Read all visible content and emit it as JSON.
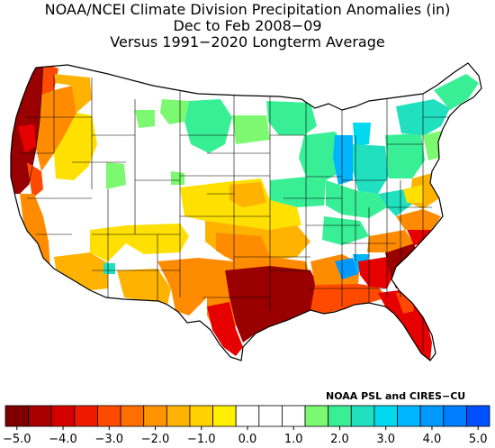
{
  "title": {
    "line1": "NOAA/NCEI Climate Division Precipitation Anomalies (in)",
    "line2": "Dec to Feb 2008−09",
    "line3": "Versus 1991−2020 Longterm Average"
  },
  "credit": "NOAA PSL and CIRES−CU",
  "legend": {
    "colors": [
      "#7f0000",
      "#a80000",
      "#d40000",
      "#ee1a00",
      "#ff4a00",
      "#ff6f00",
      "#ff9300",
      "#ffb300",
      "#ffd200",
      "#fff000",
      "#ffffff",
      "#ffffff",
      "#ffffff",
      "#7cf970",
      "#39ef96",
      "#21e0c0",
      "#00d9ee",
      "#00b5ff",
      "#0099ff",
      "#007dff",
      "#0050ff"
    ],
    "tick_labels": [
      "−5.0",
      "−4.0",
      "−3.0",
      "−2.0",
      "−1.0",
      "0.0",
      "1.0",
      "2.0",
      "3.0",
      "4.0",
      "5.0"
    ]
  },
  "map_palette": {
    "deep_red": "#9b0000",
    "red": "#e60000",
    "orange_red": "#ff4a00",
    "orange": "#ff8c00",
    "light_orange": "#ffb300",
    "yellow": "#ffe000",
    "white": "#ffffff",
    "light_green": "#7cf970",
    "green": "#39ef96",
    "teal": "#21e0c0",
    "cyan": "#00d9ee",
    "light_blue": "#00b5ff",
    "blue": "#0099ff",
    "boundary": "#000000"
  }
}
